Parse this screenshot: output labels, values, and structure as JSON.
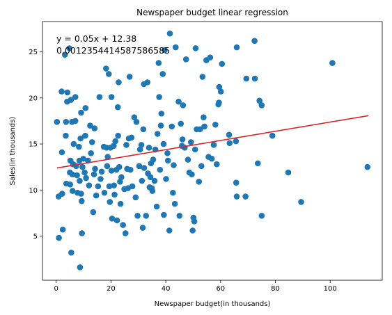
{
  "chart_data": {
    "type": "scatter",
    "title": "Newspaper budget linear regression",
    "xlabel": "Newspaper budget(in thousands)",
    "ylabel": "Sales(in thousands)",
    "xlim": [
      -5,
      119
    ],
    "ylim": [
      0.2,
      28.3
    ],
    "xticks": [
      0,
      20,
      40,
      60,
      80,
      100
    ],
    "yticks": [
      5,
      10,
      15,
      20,
      25
    ],
    "grid": false,
    "annotations": [
      "y = 0.05x + 12.38",
      "0.0012354414587586585"
    ],
    "colors": {
      "points": "#1f77b4",
      "fit_line": "#d62728",
      "axes": "#000000"
    },
    "fit_line": {
      "slope": 0.05,
      "intercept": 12.38,
      "x": [
        0.3,
        114.0
      ]
    },
    "points": [
      [
        0.3,
        17.4
      ],
      [
        0.9,
        9.3
      ],
      [
        1.0,
        4.8
      ],
      [
        2.0,
        20.7
      ],
      [
        2.1,
        14.1
      ],
      [
        2.4,
        5.7
      ],
      [
        2.2,
        9.6
      ],
      [
        3.2,
        24.7
      ],
      [
        3.5,
        15.9
      ],
      [
        3.7,
        10.7
      ],
      [
        3.6,
        17.4
      ],
      [
        4.0,
        19.6
      ],
      [
        4.1,
        20.6
      ],
      [
        4.8,
        25.4
      ],
      [
        5.0,
        11.9
      ],
      [
        5.1,
        10.6
      ],
      [
        5.2,
        13.2
      ],
      [
        5.4,
        19.8
      ],
      [
        5.5,
        3.2
      ],
      [
        5.8,
        17.4
      ],
      [
        5.9,
        11.7
      ],
      [
        6.0,
        9.9
      ],
      [
        6.2,
        12.8
      ],
      [
        6.4,
        15.0
      ],
      [
        7.0,
        20.1
      ],
      [
        7.3,
        12.6
      ],
      [
        7.6,
        11.6
      ],
      [
        7.8,
        9.7
      ],
      [
        7.0,
        17.5
      ],
      [
        8.3,
        14.7
      ],
      [
        8.5,
        13.2
      ],
      [
        8.6,
        11.0
      ],
      [
        8.7,
        1.6
      ],
      [
        8.9,
        15.6
      ],
      [
        9.1,
        18.4
      ],
      [
        9.3,
        8.8
      ],
      [
        9.1,
        9.6
      ],
      [
        9.4,
        5.3
      ],
      [
        9.6,
        12.5
      ],
      [
        9.9,
        13.4
      ],
      [
        10.4,
        11.9
      ],
      [
        10.6,
        15.9
      ],
      [
        10.7,
        18.9
      ],
      [
        10.9,
        11.3
      ],
      [
        11.6,
        13.2
      ],
      [
        12.0,
        10.5
      ],
      [
        12.4,
        17.0
      ],
      [
        12.7,
        14.0
      ],
      [
        13.1,
        15.2
      ],
      [
        13.5,
        7.6
      ],
      [
        13.8,
        11.7
      ],
      [
        14.0,
        16.7
      ],
      [
        14.2,
        12.3
      ],
      [
        14.6,
        9.4
      ],
      [
        15.3,
        10.4
      ],
      [
        15.8,
        20.1
      ],
      [
        16.2,
        11.2
      ],
      [
        16.6,
        12.0
      ],
      [
        17.4,
        14.7
      ],
      [
        17.6,
        9.7
      ],
      [
        18.2,
        23.2
      ],
      [
        18.3,
        14.6
      ],
      [
        18.6,
        12.6
      ],
      [
        18.8,
        13.6
      ],
      [
        19.2,
        22.6
      ],
      [
        19.4,
        10.4
      ],
      [
        19.6,
        8.7
      ],
      [
        19.8,
        14.6
      ],
      [
        20.2,
        20.1
      ],
      [
        20.2,
        12.1
      ],
      [
        20.4,
        6.9
      ],
      [
        21.0,
        14.8
      ],
      [
        21.1,
        10.5
      ],
      [
        21.3,
        9.5
      ],
      [
        21.6,
        15.3
      ],
      [
        22.0,
        12.2
      ],
      [
        22.2,
        6.7
      ],
      [
        22.5,
        19.0
      ],
      [
        22.6,
        15.9
      ],
      [
        22.8,
        21.7
      ],
      [
        23.0,
        12.5
      ],
      [
        23.3,
        10.9
      ],
      [
        23.5,
        8.5
      ],
      [
        23.8,
        11.4
      ],
      [
        24.4,
        6.2
      ],
      [
        24.9,
        10.1
      ],
      [
        25.3,
        5.3
      ],
      [
        25.6,
        14.9
      ],
      [
        25.9,
        12.3
      ],
      [
        26.2,
        10.2
      ],
      [
        26.5,
        15.6
      ],
      [
        26.8,
        22.3
      ],
      [
        27.1,
        12.2
      ],
      [
        27.5,
        15.7
      ],
      [
        27.8,
        10.4
      ],
      [
        28.5,
        17.9
      ],
      [
        29.0,
        9.2
      ],
      [
        29.3,
        17.4
      ],
      [
        29.7,
        7.2
      ],
      [
        30.3,
        12.6
      ],
      [
        30.6,
        14.4
      ],
      [
        31.1,
        14.9
      ],
      [
        31.3,
        11.0
      ],
      [
        31.6,
        5.9
      ],
      [
        31.8,
        16.6
      ],
      [
        32.0,
        21.5
      ],
      [
        32.1,
        12.4
      ],
      [
        32.8,
        7.2
      ],
      [
        33.3,
        21.7
      ],
      [
        33.5,
        11.8
      ],
      [
        33.9,
        14.6
      ],
      [
        34.1,
        10.3
      ],
      [
        34.4,
        11.4
      ],
      [
        34.6,
        12.9
      ],
      [
        34.9,
        10.2
      ],
      [
        35.1,
        9.9
      ],
      [
        35.4,
        13.3
      ],
      [
        35.9,
        11.0
      ],
      [
        36.2,
        14.4
      ],
      [
        36.7,
        8.2
      ],
      [
        37.0,
        16.1
      ],
      [
        37.4,
        23.8
      ],
      [
        37.6,
        20.1
      ],
      [
        37.9,
        12.2
      ],
      [
        38.2,
        17.0
      ],
      [
        38.4,
        18.3
      ],
      [
        38.9,
        22.6
      ],
      [
        39.2,
        15.0
      ],
      [
        39.3,
        7.3
      ],
      [
        39.6,
        25.2
      ],
      [
        40.1,
        11.2
      ],
      [
        40.6,
        14.0
      ],
      [
        40.8,
        13.2
      ],
      [
        41.3,
        5.6
      ],
      [
        41.5,
        27.0
      ],
      [
        42.2,
        16.9
      ],
      [
        42.6,
        9.7
      ],
      [
        42.9,
        12.7
      ],
      [
        43.3,
        8.5
      ],
      [
        43.6,
        25.5
      ],
      [
        44.7,
        19.6
      ],
      [
        45.0,
        7.2
      ],
      [
        45.5,
        17.2
      ],
      [
        45.9,
        14.8
      ],
      [
        46.1,
        15.5
      ],
      [
        46.3,
        19.2
      ],
      [
        46.9,
        14.6
      ],
      [
        47.4,
        24.2
      ],
      [
        48.1,
        13.3
      ],
      [
        48.6,
        11.9
      ],
      [
        49.2,
        15.2
      ],
      [
        49.5,
        11.7
      ],
      [
        49.8,
        5.6
      ],
      [
        50.1,
        7.0
      ],
      [
        50.4,
        6.6
      ],
      [
        50.7,
        14.4
      ],
      [
        50.9,
        25.4
      ],
      [
        51.3,
        16.6
      ],
      [
        52.1,
        10.9
      ],
      [
        52.5,
        16.6
      ],
      [
        53.0,
        12.6
      ],
      [
        53.4,
        22.3
      ],
      [
        53.8,
        17.9
      ],
      [
        54.1,
        16.9
      ],
      [
        54.8,
        24.1
      ],
      [
        55.6,
        13.6
      ],
      [
        56.2,
        24.4
      ],
      [
        56.8,
        13.4
      ],
      [
        57.5,
        14.9
      ],
      [
        58.1,
        17.1
      ],
      [
        58.6,
        12.8
      ],
      [
        59.2,
        19.3
      ],
      [
        59.4,
        19.5
      ],
      [
        59.5,
        21.2
      ],
      [
        60.1,
        20.7
      ],
      [
        60.5,
        23.7
      ],
      [
        63.1,
        16.0
      ],
      [
        63.3,
        15.1
      ],
      [
        65.6,
        15.3
      ],
      [
        65.9,
        25.5
      ],
      [
        65.7,
        10.8
      ],
      [
        65.9,
        9.3
      ],
      [
        69.4,
        22.1
      ],
      [
        69.1,
        9.3
      ],
      [
        72.4,
        26.2
      ],
      [
        72.5,
        22.1
      ],
      [
        73.6,
        12.9
      ],
      [
        74.2,
        19.7
      ],
      [
        75.0,
        19.2
      ],
      [
        75.0,
        7.2
      ],
      [
        78.9,
        15.9
      ],
      [
        84.7,
        11.9
      ],
      [
        89.4,
        8.7
      ],
      [
        100.8,
        23.8
      ],
      [
        113.6,
        12.5
      ]
    ]
  }
}
